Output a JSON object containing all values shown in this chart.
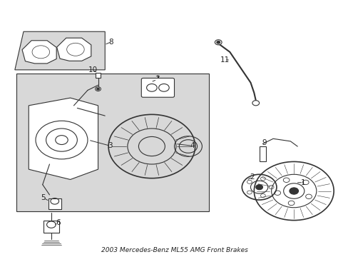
{
  "title": "2003 Mercedes-Benz ML55 AMG Front Brakes",
  "background_color": "#ffffff",
  "figsize": [
    4.89,
    3.6
  ],
  "dpi": 100,
  "text_color": "#222222",
  "line_color": "#333333",
  "shade_color": "#d8d8d8"
}
